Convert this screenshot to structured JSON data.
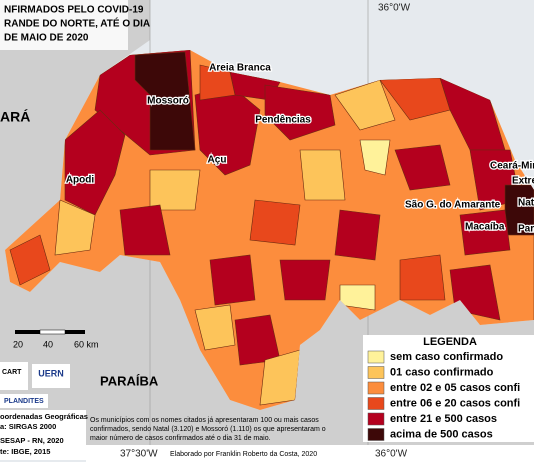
{
  "title": [
    "NFIRMADOS PELO COVID-19",
    "RANDE DO NORTE, ATÉ O DIA",
    "DE MAIO DE 2020"
  ],
  "graticule": {
    "top": [
      "36°0'W"
    ],
    "bottom": [
      "37°30'W",
      "36°0'W"
    ]
  },
  "places": [
    "Areia Branca",
    "Mossoró",
    "Pendências",
    "Açu",
    "Apodi",
    "Ceará-Mir",
    "Extre",
    "Nat",
    "São G. do Amarante",
    "Macaíba",
    "Parn"
  ],
  "neighbors": [
    "ARÁ",
    "PARAÍBA"
  ],
  "scale": [
    "20",
    "40",
    "60 km"
  ],
  "legend": {
    "title": "LEGENDA",
    "items": [
      {
        "label": "sem caso confirmado",
        "color": "#fff29a"
      },
      {
        "label": "01 caso confirmado",
        "color": "#fdc45a"
      },
      {
        "label": "entre 02 e 05 casos confi",
        "color": "#fc8d3d"
      },
      {
        "label": "entre 06 e 20 casos confi",
        "color": "#e8481c"
      },
      {
        "label": "entre 21 e 500 casos",
        "color": "#b4001e"
      },
      {
        "label": "acima de 500 casos",
        "color": "#3d0808"
      }
    ]
  },
  "credits": [
    "oordenadas Geográficas",
    "a: SIRGAS 2000",
    "SESAP - RN, 2020",
    "te: IBGE, 2015"
  ],
  "logos": [
    "CART",
    "UERN",
    "PLANDITES"
  ],
  "note": [
    "Os municípios com os nomes citados já apresentaram 100 ou mais casos",
    "confirmados, sendo Natal (3.120) e Mossoró (1.110) os que apresentaram o",
    "maior número de casos confirmados até o dia 31 de maio."
  ],
  "author": "Elaborado por Franklin Roberto da Costa, 2020"
}
